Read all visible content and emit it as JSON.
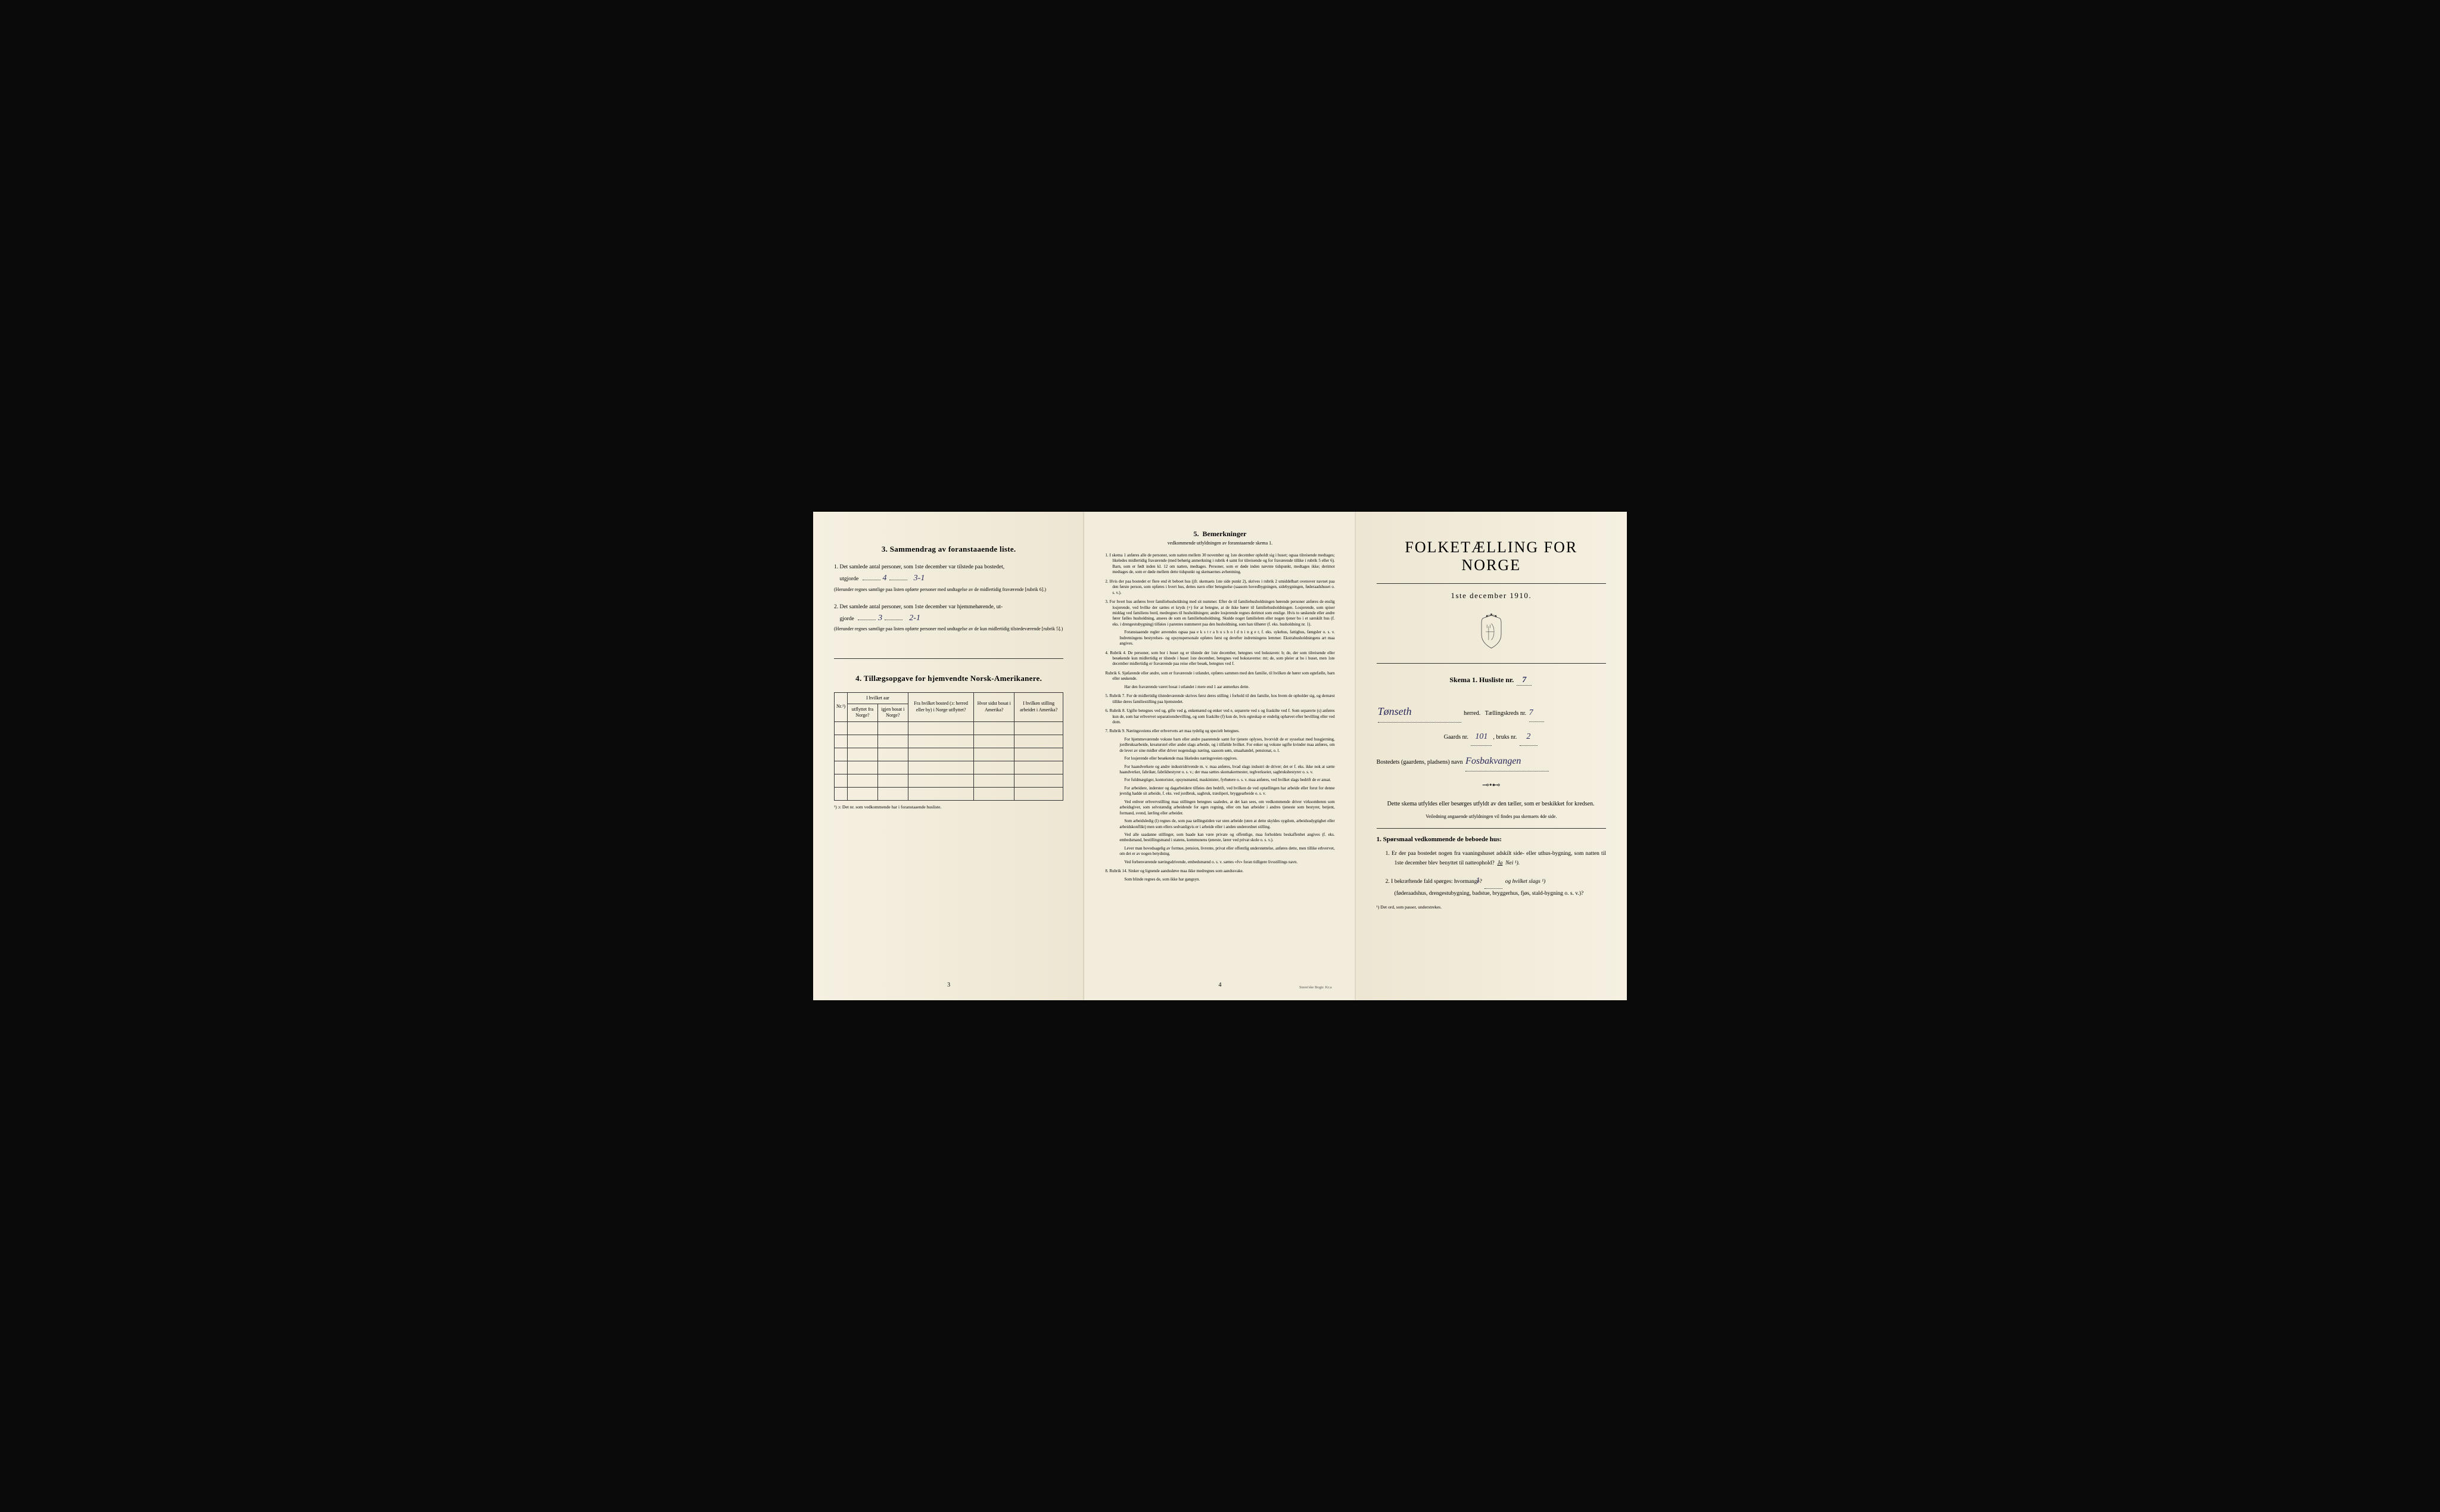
{
  "colors": {
    "paper": "#f5f0e1",
    "paper_shadow": "#ede6d3",
    "ink": "#1a1a1a",
    "handwriting": "#2a2a5a",
    "background": "#0a0a0a"
  },
  "leftPage": {
    "section3": {
      "number": "3.",
      "title": "Sammendrag av foranstaaende liste.",
      "item1": {
        "num": "1.",
        "text_before": "Det samlede antal personer, som 1ste december var tilstede paa bostedet,",
        "label": "utgjorde",
        "value1": "4",
        "value2": "3-1",
        "note": "(Herunder regnes samtlige paa listen opførte personer med undtagelse av de midlertidig fraværende [rubrik 6].)"
      },
      "item2": {
        "num": "2.",
        "text_before": "Det samlede antal personer, som 1ste december var hjemmehørende, ut-",
        "label": "gjorde",
        "value1": "3",
        "value2": "2-1",
        "note": "(Herunder regnes samtlige paa listen opførte personer med undtagelse av de kun midlertidig tilstedeværende [rubrik 5].)"
      }
    },
    "section4": {
      "number": "4.",
      "title": "Tillægsopgave for hjemvendte Norsk-Amerikanere.",
      "table": {
        "headers": {
          "col1": "Nr.¹)",
          "col2_main": "I hvilket aar",
          "col2a": "utflyttet fra Norge?",
          "col2b": "igjen bosat i Norge?",
          "col3": "Fra hvilket bosted (ɔ: herred eller by) i Norge utflyttet?",
          "col4": "Hvor sidst bosat i Amerika?",
          "col5": "I hvilken stilling arbeidet i Amerika?"
        }
      },
      "footnote": "¹) ɔ: Det nr. som vedkommende har i foranstaaende husliste."
    },
    "pageNum": "3"
  },
  "centerPage": {
    "number": "5.",
    "title": "Bemerkninger",
    "subtitle": "vedkommende utfyldningen av foranstaaende skema 1.",
    "rules": [
      {
        "num": "1.",
        "text": "I skema 1 anføres alle de personer, som natten mellem 30 november og 1ste december opholdt sig i huset; ogsaa tilreisende medtages; likeledes midlertidig fraværende (med behørig anmerkning i rubrik 4 samt for tilreisende og for fraværende tillike i rubrik 5 eller 6). Barn, som er født inden kl. 12 om natten, medtages. Personer, som er døde inden nævnte tidspunkt, medtages ikke; derimot medtages de, som er døde mellem dette tidspunkt og skemaernes avhentning."
      },
      {
        "num": "2.",
        "text": "Hvis der paa bostedet er flere end ét beboet hus (jfr. skemaets 1ste side punkt 2), skrives i rubrik 2 umiddelbart ovenover navnet paa den første person, som opføres i hvert hus, dettes navn eller betegnelse (saasom hovedbygningen, sidebygningen, føderaadshuset o. s. v.)."
      },
      {
        "num": "3.",
        "text": "For hvert hus anføres hver familiehusholdning med sit nummer. Efter de til familiehusholdningen hørende personer anføres de enslig losjerende, ved hvilke der sættes et kryds (×) for at betegne, at de ikke hører til familiehusholdningen. Losjerende, som spiser middag ved familiens bord, medregnes til husholdningen; andre losjerende regnes derimot som enslige. Hvis to søskende eller andre fører fælles husholdning, ansees de som en familiehusholdning. Skulde noget familielem eller nogen tjener bo i et særskilt hus (f. eks. i drengestubygning) tilføies i parentes nummeret paa den husholdning, som han tilhører (f. eks. husholdning nr. 1).",
        "extra": "Foranstaaende regler anvendes ogsaa paa e k s t r a h u s h o l d n i n g e r, f. eks. sykehus, fattighus, fængsler o. s. v. Indretningens bestyrelses- og opsynspersonale opføres først og derefter indretningens lemmer. Ekstrahusholdningens art maa angives."
      },
      {
        "num": "4.",
        "text": "Rubrik 4. De personer, som bor i huset og er tilstede der 1ste december, betegnes ved bokstaven: b; de, der som tilreisende eller besøkende kun midlertidig er tilstede i huset 1ste december, betegnes ved bokstaverne: mt; de, som pleier at bo i huset, men 1ste december midlertidig er fraværende paa reise eller besøk, betegnes ved f."
      },
      {
        "num": "",
        "text": "Rubrik 6. Sjøfarende eller andre, som er fraværende i utlandet, opføres sammen med den familie, til hvilken de hører som egtefælle, barn eller søskende.",
        "extra": "Har den fraværende været bosat i utlandet i mere end 1 aar anmerkes dette."
      },
      {
        "num": "5.",
        "text": "Rubrik 7. For de midlertidig tilstedeværende skrives først deres stilling i forhold til den familie, hos hvem de opholder sig, og dernæst tillike deres familiestilling paa hjemstedet."
      },
      {
        "num": "6.",
        "text": "Rubrik 8. Ugifte betegnes ved ug, gifte ved g, enkemænd og enker ved e, separerte ved s og fraskilte ved f. Som separerte (s) anføres kun de, som har erhvervet separationsbevilling, og som fraskilte (f) kun de, hvis egteskap er endelig ophævet efter bevilling eller ved dom."
      },
      {
        "num": "7.",
        "text": "Rubrik 9. Næringsveiens eller erhvervets art maa tydelig og specielt betegnes.",
        "paragraphs": [
          "For hjemmeværende voksne barn eller andre paarørende samt for tjenere oplyses, hvorvidt de er sysselsat med husgjerning, jordbruksarbeide, kreaturstel eller andet slags arbeide, og i tilfælde hvilket. For enker og voksne ugifte kvinder maa anføres, om de lever av sine midler eller driver nogenslags næring, saasom søm, smaahandel, pensionat, o. l.",
          "For losjerende eller besøkende maa likeledes næringsveien opgives.",
          "For haandverkere og andre industridrivende m. v. maa anføres, hvad slags industri de driver; det er f. eks. ikke nok at sætte haandverker, fabrikør, fabrikbestyrer o. s. v.; der maa sættes skomakermester, teglverkseier, sagbruksbestyrer o. s. v.",
          "For fuldmægtiger, kontorister, opsynsmænd, maskinister, fyrbøtere o. s. v. maa anføres, ved hvilket slags bedrift de er ansat.",
          "For arbeidere, inderster og dagarbeidere tilføies den bedrift, ved hvilken de ved optællingen har arbeide eller forut for denne jevnlig hadde sit arbeide, f. eks. ved jordbruk, sagbruk, træsliperi, bryggearbeide o. s. v.",
          "Ved enhver erhvervstilling maa stillingen betegnes saaledes, at det kan sees, om vedkommende driver virksomheten som arbeidsgiver, som selvstændig arbeidende for egen regning, eller om han arbeider i andres tjeneste som bestyrer, betjent, formand, svend, lærling eller arbeider.",
          "Som arbeidsledig (l) regnes de, som paa tællingstiden var uten arbeide (uten at dette skyldes sygdom, arbeidsudygtighet eller arbeidskonflikt) men som ellers sedvanligvis er i arbeide eller i anden underordnet stilling.",
          "Ved alle saadanne stillinger, som baade kan være private og offentlige, maa forholdets beskaffenhet angives (f. eks. embedsmand, bestillingsmand i statens, kommunens tjeneste, lærer ved privat skole o. s. v.).",
          "Lever man hovedsagelig av formue, pension, livrente, privat eller offentlig understøttelse, anføres dette, men tillike erhvervet, om det er av nogen betydning.",
          "Ved forhenværende næringsdrivende, embedsmænd o. s. v. sættes «fv» foran tidligere livsstillings navn."
        ]
      },
      {
        "num": "8.",
        "text": "Rubrik 14. Sinker og lignende aandssløve maa ikke medregnes som aandssvake.",
        "extra": "Som blinde regnes de, som ikke har gangsyn."
      }
    ],
    "pageNum": "4",
    "printer": "Steen'ske Bogtr.  Kr.a"
  },
  "rightPage": {
    "mainTitle": "FOLKETÆLLING FOR NORGE",
    "date": "1ste december 1910.",
    "skemaLabel": "Skema 1.  Husliste nr.",
    "skemaValue": "7",
    "herred": {
      "value": "Tønseth",
      "label": "herred.",
      "kreds_label": "Tællingskreds nr.",
      "kreds_value": "7"
    },
    "gaards": {
      "label": "Gaards nr.",
      "value": "101",
      "bruks_label": "bruks nr.",
      "bruks_value": "2"
    },
    "bosted": {
      "label": "Bostedets (gaardens, pladsens) navn",
      "value": "Fosbakvangen"
    },
    "instruction1": "Dette skema utfyldes eller besørges utfyldt av den tæller, som er beskikket for kredsen.",
    "instruction2": "Veiledning angaaende utfyldningen vil findes paa skemaets 4de side.",
    "questionsHeader": "1. Spørsmaal vedkommende de beboede hus:",
    "question1": {
      "num": "1.",
      "text": "Er der paa bostedet nogen fra vaaningshuset adskilt side- eller uthus-bygning, som natten til 1ste december blev benyttet til natteophold?",
      "ja": "Ja",
      "nei": "Nei ¹)."
    },
    "question2": {
      "num": "2.",
      "text_a": "I bekræftende fald spørges:  hvormange?",
      "value": "1",
      "text_b": "og hvilket slags ¹)",
      "text_c": "(føderaadshus, drengestubygning, badstue, bryggerhus, fjøs, stald-bygning o. s. v.)?"
    },
    "footnote": "¹) Det ord, som passer, understrekes."
  }
}
